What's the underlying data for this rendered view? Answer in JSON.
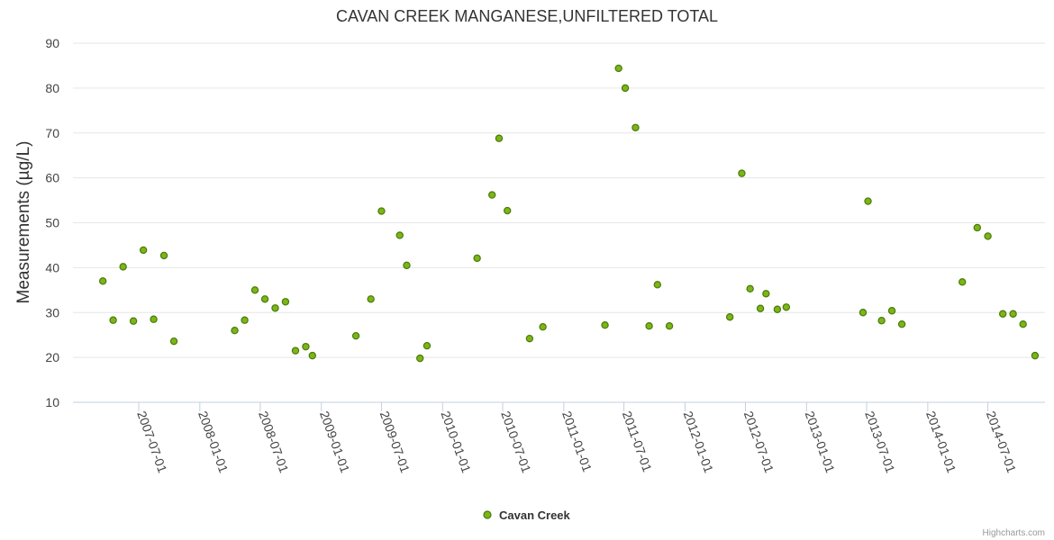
{
  "chart_data": {
    "type": "scatter",
    "title": "CAVAN CREEK MANGANESE,UNFILTERED TOTAL",
    "ylabel": "Measurements (µg/L)",
    "xlabel": "",
    "ylim": [
      10,
      90
    ],
    "yticks": [
      "10",
      "20",
      "30",
      "40",
      "50",
      "60",
      "70",
      "80",
      "90"
    ],
    "xlim": [
      "2006-12-15",
      "2014-12-20"
    ],
    "xticks": [
      "2007-07-01",
      "2008-01-01",
      "2008-07-01",
      "2009-01-01",
      "2009-07-01",
      "2010-01-01",
      "2010-07-01",
      "2011-01-01",
      "2011-07-01",
      "2012-01-01",
      "2012-07-01",
      "2013-01-01",
      "2013-07-01",
      "2014-01-01",
      "2014-07-01"
    ],
    "grid": true,
    "legend_position": "bottom-center",
    "series": [
      {
        "name": "Cavan Creek",
        "color": "#7cb518",
        "stroke": "#4a7a0a",
        "points": [
          [
            "2007-03-15",
            37.0
          ],
          [
            "2007-04-15",
            28.3
          ],
          [
            "2007-05-15",
            40.2
          ],
          [
            "2007-06-15",
            28.1
          ],
          [
            "2007-07-15",
            43.9
          ],
          [
            "2007-08-15",
            28.5
          ],
          [
            "2007-09-15",
            42.7
          ],
          [
            "2007-10-15",
            23.6
          ],
          [
            "2008-04-15",
            26.0
          ],
          [
            "2008-05-15",
            28.3
          ],
          [
            "2008-06-15",
            35.0
          ],
          [
            "2008-07-15",
            33.0
          ],
          [
            "2008-08-15",
            31.0
          ],
          [
            "2008-09-15",
            32.4
          ],
          [
            "2008-10-15",
            21.5
          ],
          [
            "2008-11-15",
            22.4
          ],
          [
            "2008-12-05",
            20.4
          ],
          [
            "2009-04-15",
            24.8
          ],
          [
            "2009-05-30",
            33.0
          ],
          [
            "2009-07-01",
            52.6
          ],
          [
            "2009-08-25",
            47.2
          ],
          [
            "2009-09-15",
            40.5
          ],
          [
            "2009-10-25",
            19.8
          ],
          [
            "2009-11-15",
            22.6
          ],
          [
            "2010-04-15",
            42.1
          ],
          [
            "2010-05-30",
            56.2
          ],
          [
            "2010-06-20",
            68.8
          ],
          [
            "2010-07-15",
            52.7
          ],
          [
            "2010-09-20",
            24.2
          ],
          [
            "2010-10-30",
            26.8
          ],
          [
            "2011-05-05",
            27.2
          ],
          [
            "2011-06-15",
            84.4
          ],
          [
            "2011-07-05",
            80.0
          ],
          [
            "2011-08-05",
            71.2
          ],
          [
            "2011-09-15",
            27.0
          ],
          [
            "2011-10-10",
            36.2
          ],
          [
            "2011-11-15",
            27.0
          ],
          [
            "2012-05-15",
            29.0
          ],
          [
            "2012-06-20",
            61.0
          ],
          [
            "2012-07-15",
            35.3
          ],
          [
            "2012-08-15",
            30.9
          ],
          [
            "2012-09-01",
            34.2
          ],
          [
            "2012-10-05",
            30.7
          ],
          [
            "2012-11-01",
            31.2
          ],
          [
            "2013-06-20",
            30.0
          ],
          [
            "2013-07-05",
            54.8
          ],
          [
            "2013-08-15",
            28.2
          ],
          [
            "2013-09-15",
            30.4
          ],
          [
            "2013-10-15",
            27.4
          ],
          [
            "2014-04-15",
            36.8
          ],
          [
            "2014-05-30",
            48.9
          ],
          [
            "2014-07-01",
            47.0
          ],
          [
            "2014-08-15",
            29.7
          ],
          [
            "2014-09-15",
            29.7
          ],
          [
            "2014-10-15",
            27.4
          ],
          [
            "2014-11-20",
            20.4
          ]
        ]
      }
    ]
  },
  "credit": "Highcharts.com"
}
